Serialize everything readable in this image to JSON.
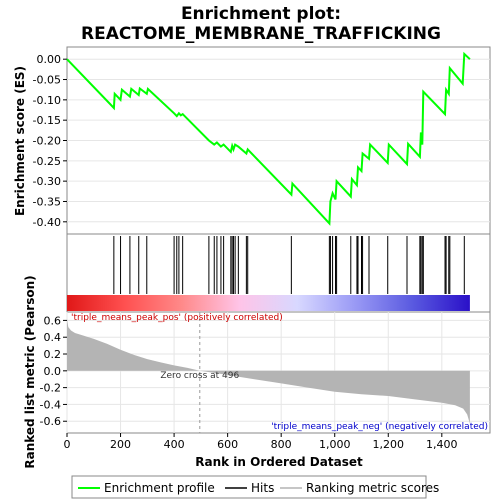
{
  "chart_data": {
    "type": "line",
    "title_line1": "Enrichment plot:",
    "title_line2": "REACTOME_MEMBRANE_TRAFFICKING",
    "es_panel": {
      "ylabel": "Enrichment score (ES)",
      "ylim": [
        -0.43,
        0.03
      ],
      "yticks": [
        0.0,
        -0.05,
        -0.1,
        -0.15,
        -0.2,
        -0.25,
        -0.3,
        -0.35,
        -0.4
      ],
      "ytick_labels": [
        "0.00",
        "-0.05",
        "-0.10",
        "-0.15",
        "-0.20",
        "-0.25",
        "-0.30",
        "-0.35",
        "-0.40"
      ],
      "line_color": "#00ff00",
      "points": [
        [
          0,
          0.0
        ],
        [
          175,
          -0.12
        ],
        [
          178,
          -0.085
        ],
        [
          200,
          -0.1
        ],
        [
          205,
          -0.075
        ],
        [
          235,
          -0.092
        ],
        [
          240,
          -0.073
        ],
        [
          268,
          -0.088
        ],
        [
          272,
          -0.072
        ],
        [
          298,
          -0.085
        ],
        [
          302,
          -0.073
        ],
        [
          400,
          -0.133
        ],
        [
          410,
          -0.14
        ],
        [
          418,
          -0.133
        ],
        [
          425,
          -0.138
        ],
        [
          432,
          -0.135
        ],
        [
          530,
          -0.2
        ],
        [
          550,
          -0.21
        ],
        [
          560,
          -0.205
        ],
        [
          575,
          -0.215
        ],
        [
          585,
          -0.21
        ],
        [
          612,
          -0.228
        ],
        [
          617,
          -0.213
        ],
        [
          622,
          -0.222
        ],
        [
          628,
          -0.21
        ],
        [
          640,
          -0.215
        ],
        [
          670,
          -0.232
        ],
        [
          675,
          -0.222
        ],
        [
          838,
          -0.333
        ],
        [
          842,
          -0.306
        ],
        [
          980,
          -0.404
        ],
        [
          984,
          -0.35
        ],
        [
          992,
          -0.33
        ],
        [
          1003,
          -0.345
        ],
        [
          1007,
          -0.3
        ],
        [
          1060,
          -0.338
        ],
        [
          1064,
          -0.295
        ],
        [
          1083,
          -0.31
        ],
        [
          1087,
          -0.266
        ],
        [
          1100,
          -0.275
        ],
        [
          1104,
          -0.232
        ],
        [
          1128,
          -0.245
        ],
        [
          1132,
          -0.21
        ],
        [
          1198,
          -0.255
        ],
        [
          1202,
          -0.21
        ],
        [
          1270,
          -0.258
        ],
        [
          1274,
          -0.208
        ],
        [
          1318,
          -0.24
        ],
        [
          1322,
          -0.18
        ],
        [
          1327,
          -0.21
        ],
        [
          1331,
          -0.08
        ],
        [
          1412,
          -0.135
        ],
        [
          1416,
          -0.075
        ],
        [
          1426,
          -0.085
        ],
        [
          1430,
          -0.022
        ],
        [
          1478,
          -0.06
        ],
        [
          1484,
          0.013
        ],
        [
          1505,
          0.0
        ]
      ]
    },
    "hits_panel": {
      "hit_positions": [
        175,
        200,
        235,
        268,
        298,
        400,
        410,
        418,
        432,
        530,
        550,
        560,
        575,
        585,
        612,
        617,
        622,
        628,
        640,
        670,
        675,
        838,
        980,
        984,
        992,
        1003,
        1007,
        1060,
        1083,
        1087,
        1100,
        1104,
        1128,
        1198,
        1270,
        1318,
        1322,
        1327,
        1331,
        1412,
        1416,
        1426,
        1430,
        1484
      ],
      "gradient_stops": [
        "#e01818",
        "#ff5050",
        "#ff8a8a",
        "#ffc4e8",
        "#d8d8ff",
        "#9a9af5",
        "#5a5ae0",
        "#2a10c8"
      ]
    },
    "metric_panel": {
      "ylabel": "Ranked list metric (Pearson)",
      "xlabel": "Rank in Ordered Dataset",
      "ylim": [
        -0.74,
        0.7
      ],
      "yticks": [
        0.6,
        0.4,
        0.2,
        0.0,
        -0.2,
        -0.4,
        -0.6
      ],
      "ytick_labels": [
        "0.6",
        "0.4",
        "0.2",
        "0.0",
        "-0.2",
        "-0.4",
        "-0.6"
      ],
      "xlim": [
        0,
        1580
      ],
      "xticks": [
        0,
        200,
        400,
        600,
        800,
        1000,
        1200,
        1400
      ],
      "xtick_labels": [
        "0",
        "200",
        "400",
        "600",
        "800",
        "1,000",
        "1,200",
        "1,400"
      ],
      "fill_color": "#b4b4b4",
      "profile": [
        [
          0,
          0.62
        ],
        [
          5,
          0.52
        ],
        [
          15,
          0.48
        ],
        [
          30,
          0.45
        ],
        [
          60,
          0.42
        ],
        [
          100,
          0.38
        ],
        [
          150,
          0.32
        ],
        [
          200,
          0.25
        ],
        [
          250,
          0.19
        ],
        [
          300,
          0.14
        ],
        [
          350,
          0.1
        ],
        [
          400,
          0.065
        ],
        [
          450,
          0.035
        ],
        [
          496,
          0.0
        ],
        [
          550,
          -0.025
        ],
        [
          600,
          -0.05
        ],
        [
          700,
          -0.1
        ],
        [
          800,
          -0.15
        ],
        [
          900,
          -0.2
        ],
        [
          1000,
          -0.25
        ],
        [
          1100,
          -0.28
        ],
        [
          1200,
          -0.3
        ],
        [
          1300,
          -0.34
        ],
        [
          1400,
          -0.38
        ],
        [
          1450,
          -0.41
        ],
        [
          1480,
          -0.45
        ],
        [
          1495,
          -0.52
        ],
        [
          1505,
          -0.63
        ]
      ],
      "zero_cross_rank": 496,
      "zero_cross_label": "Zero cross at 496",
      "pos_label": "'triple_means_peak_pos' (positively correlated)",
      "neg_label": "'triple_means_peak_neg' (negatively correlated)",
      "pos_color": "#cc0000",
      "neg_color": "#0000cc"
    },
    "legend": {
      "placement": "bottom",
      "entries": [
        {
          "label": "Enrichment profile",
          "color": "#00ff00",
          "kind": "line"
        },
        {
          "label": "Hits",
          "color": "#000000",
          "kind": "line"
        },
        {
          "label": "Ranking metric scores",
          "color": "#b4b4b4",
          "kind": "line"
        }
      ]
    }
  }
}
